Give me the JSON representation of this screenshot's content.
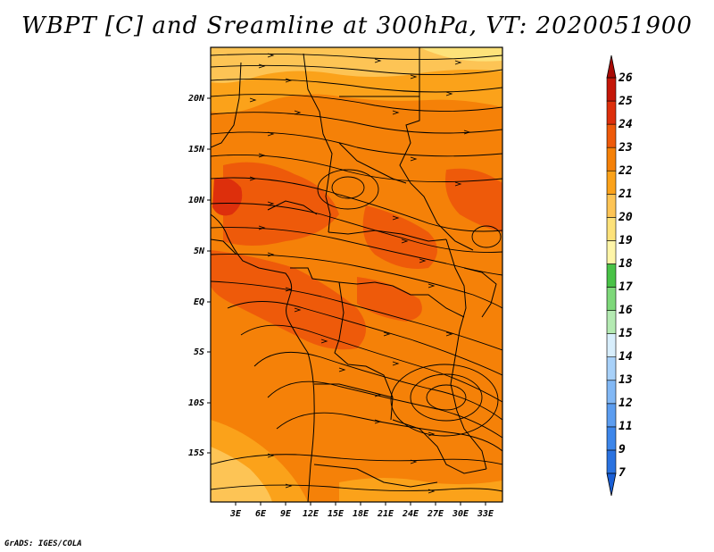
{
  "title": "WBPT [C] and Sreamline at 300hPa, VT: 2020051900",
  "credit": "GrADS: IGES/COLA",
  "map": {
    "lat_labels": [
      "20N",
      "15N",
      "10N",
      "5N",
      "EQ",
      "5S",
      "10S",
      "15S"
    ],
    "lon_labels": [
      "3E",
      "6E",
      "9E",
      "12E",
      "15E",
      "18E",
      "21E",
      "24E",
      "27E",
      "30E",
      "33E"
    ]
  },
  "colorbar": {
    "labels": [
      "7",
      "9",
      "11",
      "12",
      "13",
      "14",
      "15",
      "16",
      "17",
      "18",
      "19",
      "20",
      "21",
      "22",
      "23",
      "24",
      "25",
      "26"
    ],
    "colors": [
      "#1a5fd6",
      "#2a72e0",
      "#3d86ea",
      "#5c9df0",
      "#82b8f5",
      "#a8d1f9",
      "#d8eefc",
      "#b4eab2",
      "#7ed87a",
      "#49c247",
      "#fef5a8",
      "#fde27a",
      "#fdc455",
      "#fba21a",
      "#f58108",
      "#ee5a0a",
      "#dd2f0c",
      "#c41608",
      "#a80a05"
    ]
  }
}
